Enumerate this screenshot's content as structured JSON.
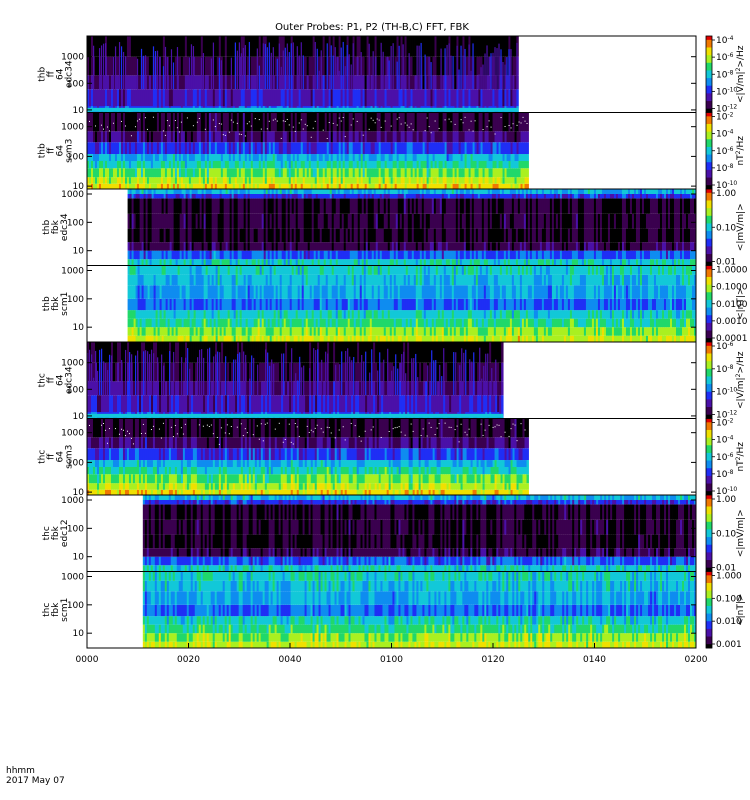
{
  "chart_data": {
    "type": "heatmap",
    "title": "Outer Probes: P1, P2 (TH-B,C) FFT, FBK",
    "date_label": "2017 May 07",
    "x_unit_label": "hhmm",
    "x_ticks": [
      "0000",
      "0020",
      "0040",
      "0100",
      "0120",
      "0140",
      "0200"
    ],
    "panels": [
      {
        "id": "thb-ff-e",
        "ylabel": [
          "thb",
          "ff",
          "64",
          "edc34"
        ],
        "yticks": [
          "1000",
          "100",
          "10"
        ],
        "yrange": [
          8,
          6000
        ],
        "time_range": [
          "0000",
          "0125"
        ],
        "cbar_label": "<|V/m|^2>/Hz",
        "cbar_ticks": [
          "10^-4",
          "10^-6",
          "10^-8",
          "10^-10",
          "10^-12"
        ],
        "style": "ff-electric"
      },
      {
        "id": "thb-ff-b",
        "ylabel": [
          "thb",
          "ff",
          "64",
          "scm3"
        ],
        "yticks": [
          "1000",
          "100",
          "10"
        ],
        "yrange": [
          8,
          3000
        ],
        "time_range": [
          "0000",
          "0127"
        ],
        "cbar_label": "nT^2/Hz",
        "cbar_ticks": [
          "10^-2",
          "10^-4",
          "10^-6",
          "10^-8",
          "10^-10"
        ],
        "style": "ff-magnetic"
      },
      {
        "id": "thb-fbk-e",
        "ylabel": [
          "thb",
          "fbk",
          "edc34"
        ],
        "yticks": [
          "1000",
          "100",
          "10"
        ],
        "yrange": [
          3,
          1500
        ],
        "time_range": [
          "0008",
          "0200"
        ],
        "cbar_label": "<|mV/m|>",
        "cbar_ticks": [
          "1.00",
          "0.10",
          "0.01"
        ],
        "style": "fbk-electric"
      },
      {
        "id": "thb-fbk-b",
        "ylabel": [
          "thb",
          "fbk",
          "scm1"
        ],
        "yticks": [
          "1000",
          "100",
          "10"
        ],
        "yrange": [
          3,
          1500
        ],
        "time_range": [
          "0008",
          "0200"
        ],
        "cbar_label": "<|nT|>",
        "cbar_ticks": [
          "1.0000",
          "0.1000",
          "0.0100",
          "0.0010",
          "0.0001"
        ],
        "style": "fbk-magnetic"
      },
      {
        "id": "thc-ff-e",
        "ylabel": [
          "thc",
          "ff",
          "64",
          "edc34"
        ],
        "yticks": [
          "1000",
          "100",
          "10"
        ],
        "yrange": [
          8,
          6000
        ],
        "time_range": [
          "0000",
          "0122"
        ],
        "cbar_label": "<|V/m|^2>/Hz",
        "cbar_ticks": [
          "10^-6",
          "10^-8",
          "10^-10",
          "10^-12"
        ],
        "style": "ff-electric"
      },
      {
        "id": "thc-ff-b",
        "ylabel": [
          "thc",
          "ff",
          "64",
          "scm3"
        ],
        "yticks": [
          "1000",
          "100",
          "10"
        ],
        "yrange": [
          8,
          3000
        ],
        "time_range": [
          "0000",
          "0127"
        ],
        "cbar_label": "nT^2/Hz",
        "cbar_ticks": [
          "10^-2",
          "10^-4",
          "10^-6",
          "10^-8",
          "10^-10"
        ],
        "style": "ff-magnetic"
      },
      {
        "id": "thc-fbk-e",
        "ylabel": [
          "thc",
          "fbk",
          "edc12"
        ],
        "yticks": [
          "1000",
          "100",
          "10"
        ],
        "yrange": [
          3,
          1500
        ],
        "time_range": [
          "0011",
          "0200"
        ],
        "cbar_label": "<|mV/m|>",
        "cbar_ticks": [
          "1.00",
          "0.10",
          "0.01"
        ],
        "style": "fbk-electric"
      },
      {
        "id": "thc-fbk-b",
        "ylabel": [
          "thc",
          "fbk",
          "scm1"
        ],
        "yticks": [
          "1000",
          "100",
          "10"
        ],
        "yrange": [
          3,
          1500
        ],
        "time_range": [
          "0011",
          "0200"
        ],
        "cbar_label": "<|nT|>",
        "cbar_ticks": [
          "1.000",
          "0.100",
          "0.010",
          "0.001"
        ],
        "style": "fbk-magnetic"
      }
    ],
    "colormap": [
      "#000000",
      "#3a004f",
      "#4b10a8",
      "#1f2ef5",
      "#0e8cf0",
      "#12c8d8",
      "#20d86a",
      "#aaf020",
      "#f0e000",
      "#f07800",
      "#e00000"
    ]
  }
}
